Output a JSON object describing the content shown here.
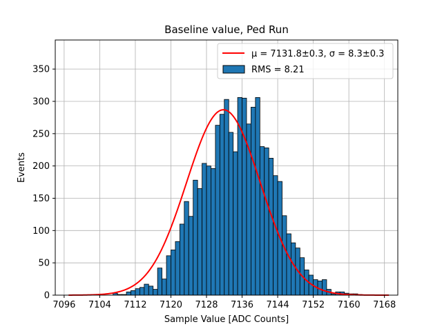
{
  "chart_data": {
    "type": "histogram",
    "title": "Baseline value, Ped Run",
    "xlabel": "Sample Value [ADC Counts]",
    "ylabel": "Events",
    "xlim": [
      7094,
      7171
    ],
    "ylim": [
      0,
      395
    ],
    "xticks": [
      7096,
      7104,
      7112,
      7120,
      7128,
      7136,
      7144,
      7152,
      7160,
      7168
    ],
    "yticks": [
      0,
      50,
      100,
      150,
      200,
      250,
      300,
      350
    ],
    "grid": true,
    "legend_position": "top-right",
    "bar_color": "#1f77b4",
    "bar_edge_color": "#000000",
    "fit_color": "#ff0000",
    "bin_start": 7097,
    "bin_width": 1,
    "bin_counts": [
      0,
      0,
      0,
      0,
      0,
      1,
      0,
      0,
      0,
      0,
      3,
      1,
      1,
      5,
      7,
      10,
      12,
      17,
      14,
      9,
      42,
      25,
      61,
      70,
      83,
      110,
      145,
      122,
      178,
      165,
      204,
      200,
      196,
      263,
      280,
      303,
      252,
      222,
      306,
      305,
      265,
      291,
      306,
      230,
      228,
      212,
      185,
      176,
      123,
      95,
      81,
      73,
      58,
      39,
      31,
      24,
      22,
      24,
      9,
      2,
      5,
      5,
      3,
      2,
      2,
      1,
      0,
      0,
      0,
      0,
      0,
      0
    ],
    "fit_curve": {
      "label": "$\\mu=7131.8{\\pm}0.3$, $\\sigma=8.3{\\pm}0.3$",
      "mu": 7131.8,
      "sigma": 8.3,
      "amplitude": 287,
      "x_range": [
        7097,
        7169
      ]
    },
    "legend": [
      {
        "kind": "line",
        "label_prefix": "μ = 7131.8±0.3, ",
        "label_suffix": "σ = 8.3±0.3"
      },
      {
        "kind": "bar",
        "label": "RMS = 8.21"
      }
    ]
  }
}
